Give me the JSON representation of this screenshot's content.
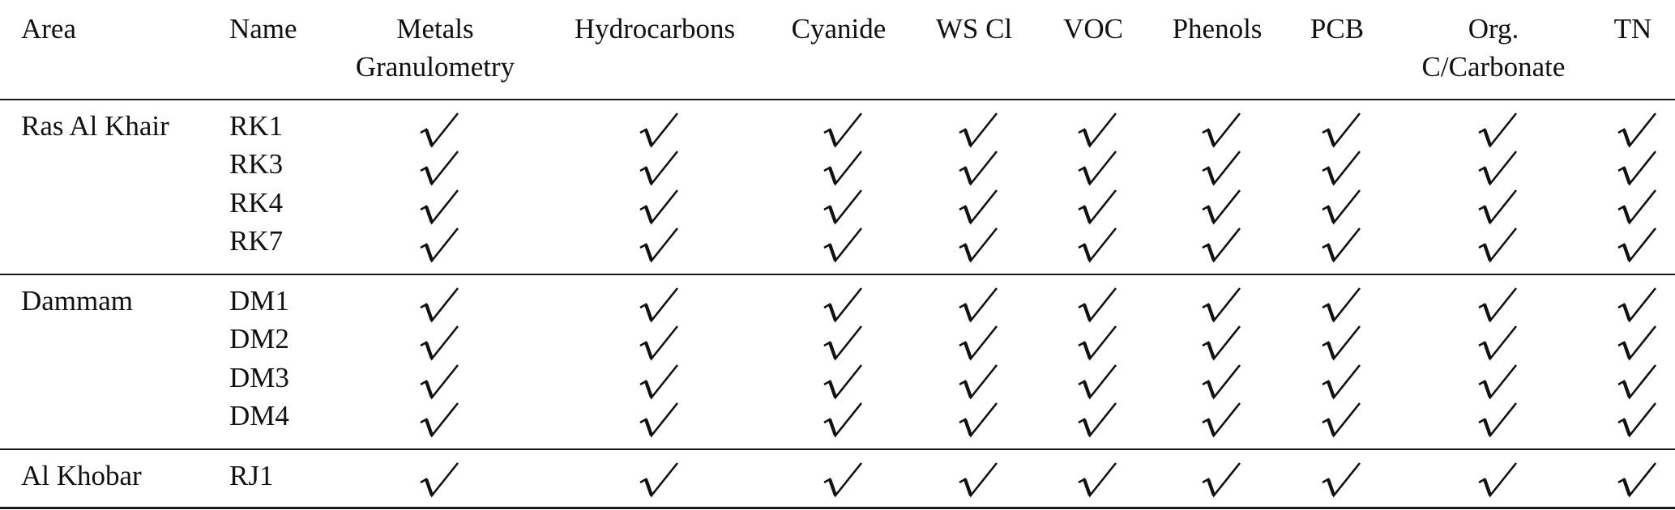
{
  "table": {
    "columns": [
      "Area",
      "Name",
      "Metals\nGranulometry",
      "Hydrocarbons",
      "Cyanide",
      "WS Cl",
      "VOC",
      "Phenols",
      "PCB",
      "Org.\nC/Carbonate",
      "TN"
    ],
    "check_symbol": "√",
    "groups": [
      {
        "area": "Ras Al Khair",
        "rows": [
          {
            "name": "RK1",
            "checks": [
              true,
              true,
              true,
              true,
              true,
              true,
              true,
              true,
              true
            ]
          },
          {
            "name": "RK3",
            "checks": [
              true,
              true,
              true,
              true,
              true,
              true,
              true,
              true,
              true
            ]
          },
          {
            "name": "RK4",
            "checks": [
              true,
              true,
              true,
              true,
              true,
              true,
              true,
              true,
              true
            ]
          },
          {
            "name": "RK7",
            "checks": [
              true,
              true,
              true,
              true,
              true,
              true,
              true,
              true,
              true
            ]
          }
        ]
      },
      {
        "area": "Dammam",
        "rows": [
          {
            "name": "DM1",
            "checks": [
              true,
              true,
              true,
              true,
              true,
              true,
              true,
              true,
              true
            ]
          },
          {
            "name": "DM2",
            "checks": [
              true,
              true,
              true,
              true,
              true,
              true,
              true,
              true,
              true
            ]
          },
          {
            "name": "DM3",
            "checks": [
              true,
              true,
              true,
              true,
              true,
              true,
              true,
              true,
              true
            ]
          },
          {
            "name": "DM4",
            "checks": [
              true,
              true,
              true,
              true,
              true,
              true,
              true,
              true,
              true
            ]
          }
        ]
      },
      {
        "area": "Al Khobar",
        "rows": [
          {
            "name": "RJ1",
            "checks": [
              true,
              true,
              true,
              true,
              true,
              true,
              true,
              true,
              true
            ]
          }
        ]
      }
    ]
  }
}
